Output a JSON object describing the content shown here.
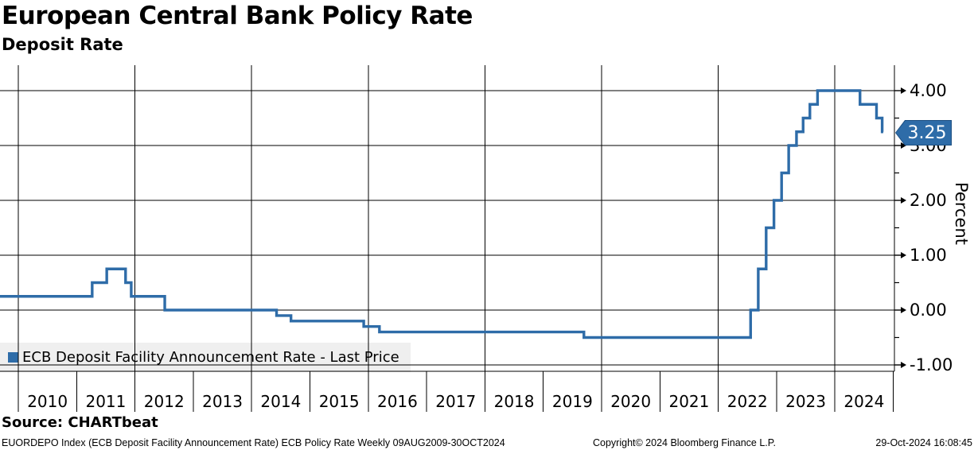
{
  "header": {
    "title": "European Central Bank Policy Rate",
    "subtitle": "Deposit Rate"
  },
  "chart_data": {
    "type": "line",
    "style": "step",
    "title": "European Central Bank Policy Rate",
    "subtitle": "Deposit Rate",
    "xlabel": "",
    "ylabel": "Percent",
    "ylim": [
      -1.12,
      4.46
    ],
    "y_major_ticks": [
      4.0,
      3.0,
      2.0,
      1.0,
      0.0,
      -1.0
    ],
    "y_minor_ticks": [
      3.5,
      2.5,
      1.5,
      0.5,
      -0.5
    ],
    "x_year_labels": [
      "2010",
      "2011",
      "2012",
      "2013",
      "2014",
      "2015",
      "2016",
      "2017",
      "2018",
      "2019",
      "2020",
      "2021",
      "2022",
      "2023",
      "2024"
    ],
    "grid_vertical_years": [
      2010,
      2012,
      2014,
      2016,
      2018,
      2020,
      2022,
      2024
    ],
    "legend_position": "bottom-left",
    "grid": "on",
    "series": [
      {
        "name": "ECB Deposit Facility Announcement Rate - Last Price",
        "color": "#2e6ca8",
        "points": [
          [
            "2009-08-09",
            0.25
          ],
          [
            "2011-04-07",
            0.5
          ],
          [
            "2011-07-07",
            0.75
          ],
          [
            "2011-11-03",
            0.5
          ],
          [
            "2011-12-08",
            0.25
          ],
          [
            "2012-07-05",
            0.0
          ],
          [
            "2014-06-05",
            -0.1
          ],
          [
            "2014-09-04",
            -0.2
          ],
          [
            "2015-12-03",
            -0.3
          ],
          [
            "2016-03-10",
            -0.4
          ],
          [
            "2019-09-12",
            -0.5
          ],
          [
            "2022-07-21",
            0.0
          ],
          [
            "2022-09-08",
            0.75
          ],
          [
            "2022-10-27",
            1.5
          ],
          [
            "2022-12-15",
            2.0
          ],
          [
            "2023-02-02",
            2.5
          ],
          [
            "2023-03-16",
            3.0
          ],
          [
            "2023-05-04",
            3.25
          ],
          [
            "2023-06-15",
            3.5
          ],
          [
            "2023-07-27",
            3.75
          ],
          [
            "2023-09-14",
            4.0
          ],
          [
            "2024-06-06",
            3.75
          ],
          [
            "2024-09-18",
            3.5
          ],
          [
            "2024-10-23",
            3.25
          ]
        ],
        "end_date": "2024-10-30"
      }
    ],
    "last_price": "3.25"
  },
  "legend": {
    "label": "ECB Deposit Facility Announcement Rate - Last Price",
    "swatch_color": "#2e6ca8"
  },
  "axis": {
    "ylabel": "Percent"
  },
  "source": {
    "label": "Source: CHARTbeat"
  },
  "footer": {
    "left": "EUORDEPO Index (ECB Deposit Facility Announcement Rate) ECB Policy Rate  Weekly 09AUG2009-30OCT2024",
    "center": "Copyright© 2024 Bloomberg Finance L.P.",
    "right": "29-Oct-2024 16:08:45"
  },
  "colors": {
    "line": "#2e6ca8",
    "badge_fill": "#2e6ca8",
    "badge_border": "#1c4f82",
    "grid": "#000000",
    "legend_bg": "#efefef",
    "background": "#ffffff"
  }
}
